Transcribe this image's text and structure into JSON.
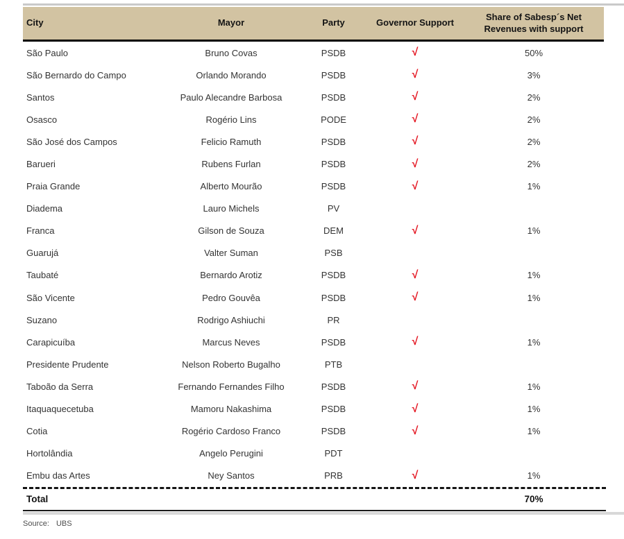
{
  "table": {
    "columns": {
      "city": "City",
      "mayor": "Mayor",
      "party": "Party",
      "governor_support": "Governor Support",
      "share_line1": "Share of Sabesp´s Net",
      "share_line2": "Revenues with support"
    },
    "check_glyph": "√",
    "rows": [
      {
        "city": "São Paulo",
        "mayor": "Bruno Covas",
        "party": "PSDB",
        "governor_support": true,
        "share": "50%"
      },
      {
        "city": "São Bernardo do Campo",
        "mayor": "Orlando Morando",
        "party": "PSDB",
        "governor_support": true,
        "share": "3%"
      },
      {
        "city": "Santos",
        "mayor": "Paulo Alecandre Barbosa",
        "party": "PSDB",
        "governor_support": true,
        "share": "2%"
      },
      {
        "city": "Osasco",
        "mayor": "Rogério Lins",
        "party": "PODE",
        "governor_support": true,
        "share": "2%"
      },
      {
        "city": "São José dos Campos",
        "mayor": "Felicio Ramuth",
        "party": "PSDB",
        "governor_support": true,
        "share": "2%"
      },
      {
        "city": "Barueri",
        "mayor": "Rubens Furlan",
        "party": "PSDB",
        "governor_support": true,
        "share": "2%"
      },
      {
        "city": "Praia Grande",
        "mayor": "Alberto Mourão",
        "party": "PSDB",
        "governor_support": true,
        "share": "1%"
      },
      {
        "city": "Diadema",
        "mayor": "Lauro Michels",
        "party": "PV",
        "governor_support": false,
        "share": ""
      },
      {
        "city": "Franca",
        "mayor": "Gilson de Souza",
        "party": "DEM",
        "governor_support": true,
        "share": "1%"
      },
      {
        "city": "Guarujá",
        "mayor": "Valter Suman",
        "party": "PSB",
        "governor_support": false,
        "share": ""
      },
      {
        "city": "Taubaté",
        "mayor": "Bernardo Arotiz",
        "party": "PSDB",
        "governor_support": true,
        "share": "1%"
      },
      {
        "city": "São Vicente",
        "mayor": "Pedro Gouvêa",
        "party": "PSDB",
        "governor_support": true,
        "share": "1%"
      },
      {
        "city": "Suzano",
        "mayor": "Rodrigo Ashiuchi",
        "party": "PR",
        "governor_support": false,
        "share": ""
      },
      {
        "city": "Carapicuíba",
        "mayor": "Marcus Neves",
        "party": "PSDB",
        "governor_support": true,
        "share": "1%"
      },
      {
        "city": "Presidente Prudente",
        "mayor": "Nelson Roberto Bugalho",
        "party": "PTB",
        "governor_support": false,
        "share": ""
      },
      {
        "city": "Taboão da Serra",
        "mayor": "Fernando Fernandes Filho",
        "party": "PSDB",
        "governor_support": true,
        "share": "1%"
      },
      {
        "city": "Itaquaquecetuba",
        "mayor": "Mamoru Nakashima",
        "party": "PSDB",
        "governor_support": true,
        "share": "1%"
      },
      {
        "city": "Cotia",
        "mayor": "Rogério Cardoso Franco",
        "party": "PSDB",
        "governor_support": true,
        "share": "1%"
      },
      {
        "city": "Hortolândia",
        "mayor": "Angelo Perugini",
        "party": "PDT",
        "governor_support": false,
        "share": ""
      },
      {
        "city": "Embu das Artes",
        "mayor": "Ney Santos",
        "party": "PRB",
        "governor_support": true,
        "share": "1%"
      }
    ],
    "total": {
      "label": "Total",
      "share": "70%"
    }
  },
  "source": {
    "label": "Source:",
    "value": "UBS"
  },
  "colors": {
    "header_bg": "#d2c3a2",
    "check_red": "#e3101c"
  }
}
